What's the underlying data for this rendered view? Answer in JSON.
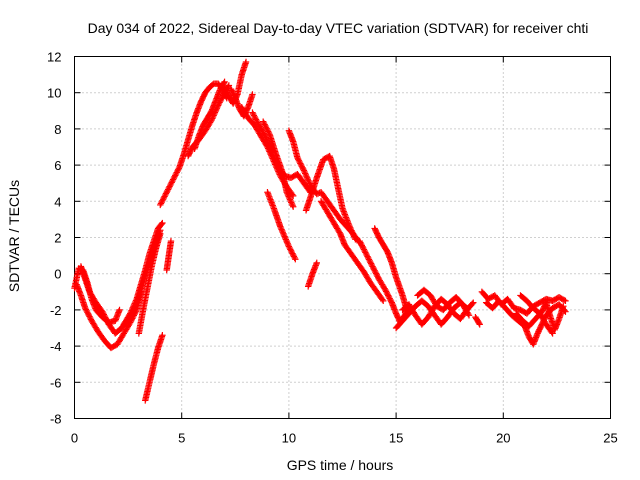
{
  "chart_data": {
    "type": "scatter",
    "title": "Day 034 of 2022, Sidereal Day-to-day VTEC variation (SDTVAR) for receiver chti",
    "xlabel": "GPS time / hours",
    "ylabel": "SDTVAR / TECUs",
    "xlim": [
      0,
      25
    ],
    "ylim": [
      -8,
      12
    ],
    "xticks": [
      0,
      5,
      10,
      15,
      20,
      25
    ],
    "yticks": [
      -8,
      -6,
      -4,
      -2,
      0,
      2,
      4,
      6,
      8,
      10,
      12
    ],
    "grid": true,
    "marker": "+",
    "color": "#ff0000",
    "series": [
      {
        "name": "SDTVAR",
        "segments": [
          [
            [
              0.0,
              -0.8
            ],
            [
              0.2,
              0.3
            ],
            [
              0.4,
              0.2
            ],
            [
              0.6,
              -0.5
            ],
            [
              0.8,
              -1.4
            ],
            [
              1.0,
              -2.0
            ],
            [
              1.3,
              -2.4
            ],
            [
              1.6,
              -2.7
            ],
            [
              1.9,
              -2.6
            ],
            [
              2.1,
              -2.0
            ]
          ],
          [
            [
              0.1,
              -0.6
            ],
            [
              0.3,
              -1.2
            ],
            [
              0.5,
              -1.9
            ],
            [
              0.8,
              -2.6
            ],
            [
              1.1,
              -3.2
            ],
            [
              1.4,
              -3.7
            ],
            [
              1.7,
              -4.1
            ],
            [
              2.0,
              -3.9
            ],
            [
              2.3,
              -3.3
            ],
            [
              2.6,
              -2.7
            ],
            [
              2.9,
              -2.0
            ],
            [
              3.1,
              -1.0
            ]
          ],
          [
            [
              0.3,
              0.4
            ],
            [
              0.5,
              -0.3
            ],
            [
              0.7,
              -1.0
            ],
            [
              1.0,
              -1.6
            ],
            [
              1.3,
              -2.1
            ],
            [
              1.6,
              -2.8
            ],
            [
              1.9,
              -3.3
            ],
            [
              2.2,
              -3.0
            ],
            [
              2.5,
              -2.5
            ],
            [
              2.8,
              -1.9
            ],
            [
              3.0,
              -1.3
            ],
            [
              3.2,
              -0.5
            ],
            [
              3.4,
              0.3
            ],
            [
              3.6,
              1.0
            ],
            [
              3.8,
              1.7
            ],
            [
              4.0,
              2.4
            ]
          ],
          [
            [
              2.3,
              -2.8
            ],
            [
              2.6,
              -2.2
            ],
            [
              2.9,
              -1.4
            ],
            [
              3.1,
              -0.6
            ],
            [
              3.3,
              0.2
            ],
            [
              3.5,
              1.1
            ],
            [
              3.7,
              1.8
            ],
            [
              3.9,
              2.5
            ],
            [
              4.1,
              2.8
            ]
          ],
          [
            [
              3.0,
              -3.3
            ],
            [
              3.2,
              -2.0
            ],
            [
              3.4,
              -0.8
            ],
            [
              3.6,
              0.4
            ],
            [
              3.8,
              1.4
            ],
            [
              4.0,
              2.2
            ]
          ],
          [
            [
              4.3,
              0.2
            ],
            [
              4.4,
              1.0
            ],
            [
              4.5,
              1.8
            ]
          ],
          [
            [
              3.3,
              -7.0
            ],
            [
              3.5,
              -6.0
            ],
            [
              3.7,
              -5.0
            ],
            [
              3.9,
              -4.1
            ],
            [
              4.1,
              -3.4
            ]
          ],
          [
            [
              4.0,
              3.8
            ],
            [
              4.3,
              4.5
            ],
            [
              4.6,
              5.2
            ],
            [
              4.9,
              5.9
            ],
            [
              5.1,
              6.6
            ],
            [
              5.3,
              7.4
            ],
            [
              5.5,
              8.2
            ],
            [
              5.7,
              8.9
            ],
            [
              5.9,
              9.5
            ],
            [
              6.1,
              10.0
            ],
            [
              6.3,
              10.3
            ],
            [
              6.5,
              10.5
            ],
            [
              6.7,
              10.5
            ],
            [
              6.9,
              10.2
            ],
            [
              7.1,
              9.7
            ]
          ],
          [
            [
              5.3,
              6.5
            ],
            [
              5.5,
              7.0
            ],
            [
              5.8,
              7.4
            ],
            [
              6.1,
              7.9
            ],
            [
              6.4,
              8.5
            ],
            [
              6.7,
              9.3
            ],
            [
              7.0,
              10.0
            ],
            [
              7.2,
              10.4
            ]
          ],
          [
            [
              5.6,
              6.9
            ],
            [
              5.8,
              7.6
            ],
            [
              6.0,
              8.2
            ],
            [
              6.2,
              8.6
            ],
            [
              6.4,
              9.0
            ],
            [
              6.6,
              9.6
            ],
            [
              6.8,
              10.2
            ],
            [
              7.0,
              10.6
            ]
          ],
          [
            [
              7.0,
              10.3
            ],
            [
              7.2,
              9.8
            ],
            [
              7.4,
              9.4
            ],
            [
              7.6,
              9.9
            ],
            [
              7.8,
              11.0
            ],
            [
              8.0,
              11.7
            ]
          ],
          [
            [
              7.3,
              10.2
            ],
            [
              7.5,
              9.7
            ],
            [
              7.7,
              9.1
            ],
            [
              7.9,
              8.7
            ],
            [
              8.1,
              9.2
            ],
            [
              8.3,
              9.9
            ]
          ],
          [
            [
              7.8,
              9.2
            ],
            [
              8.1,
              8.6
            ],
            [
              8.4,
              8.2
            ],
            [
              8.7,
              7.6
            ],
            [
              9.0,
              7.0
            ],
            [
              9.3,
              6.2
            ],
            [
              9.6,
              5.4
            ],
            [
              9.9,
              4.8
            ],
            [
              10.2,
              4.3
            ]
          ],
          [
            [
              8.3,
              8.9
            ],
            [
              8.6,
              8.2
            ],
            [
              8.9,
              7.6
            ],
            [
              9.2,
              6.7
            ],
            [
              9.5,
              5.9
            ],
            [
              9.8,
              5.4
            ],
            [
              10.1,
              5.3
            ],
            [
              10.4,
              5.5
            ],
            [
              10.7,
              5.0
            ],
            [
              11.0,
              4.5
            ]
          ],
          [
            [
              8.8,
              8.4
            ],
            [
              9.1,
              7.7
            ],
            [
              9.4,
              6.6
            ],
            [
              9.7,
              5.6
            ],
            [
              9.9,
              4.5
            ],
            [
              10.2,
              3.7
            ]
          ],
          [
            [
              9.0,
              4.5
            ],
            [
              9.3,
              3.6
            ],
            [
              9.6,
              2.6
            ],
            [
              10.0,
              1.5
            ],
            [
              10.3,
              0.8
            ]
          ],
          [
            [
              10.0,
              7.9
            ],
            [
              10.2,
              7.3
            ],
            [
              10.4,
              6.4
            ],
            [
              10.7,
              5.7
            ],
            [
              11.0,
              4.9
            ],
            [
              11.3,
              4.4
            ],
            [
              11.5,
              4.5
            ],
            [
              11.8,
              4.0
            ],
            [
              12.1,
              3.5
            ],
            [
              12.4,
              3.0
            ],
            [
              12.7,
              2.6
            ],
            [
              13.0,
              2.2
            ],
            [
              13.3,
              1.7
            ]
          ],
          [
            [
              10.8,
              3.5
            ],
            [
              11.0,
              4.2
            ],
            [
              11.3,
              5.3
            ],
            [
              11.6,
              6.3
            ],
            [
              11.9,
              6.5
            ],
            [
              12.1,
              5.8
            ],
            [
              12.3,
              4.7
            ],
            [
              12.5,
              3.6
            ],
            [
              12.8,
              2.7
            ],
            [
              13.1,
              1.9
            ]
          ],
          [
            [
              11.5,
              4.0
            ],
            [
              11.8,
              3.4
            ],
            [
              12.1,
              2.8
            ],
            [
              12.4,
              2.2
            ],
            [
              12.6,
              1.6
            ],
            [
              12.9,
              1.1
            ],
            [
              13.2,
              0.6
            ],
            [
              13.5,
              0.1
            ],
            [
              13.8,
              -0.5
            ],
            [
              14.1,
              -1.0
            ],
            [
              14.4,
              -1.5
            ]
          ],
          [
            [
              13.3,
              1.8
            ],
            [
              13.6,
              1.1
            ],
            [
              13.9,
              0.4
            ],
            [
              14.2,
              -0.3
            ],
            [
              14.5,
              -0.9
            ],
            [
              14.8,
              -1.6
            ],
            [
              15.0,
              -2.2
            ],
            [
              15.2,
              -2.7
            ],
            [
              15.4,
              -2.3
            ],
            [
              15.6,
              -1.9
            ]
          ],
          [
            [
              14.0,
              2.5
            ],
            [
              14.2,
              2.0
            ],
            [
              14.4,
              1.6
            ],
            [
              14.6,
              1.2
            ],
            [
              14.8,
              0.6
            ],
            [
              15.0,
              -0.2
            ],
            [
              15.3,
              -1.2
            ],
            [
              15.5,
              -2.0
            ]
          ],
          [
            [
              10.9,
              -0.7
            ],
            [
              11.1,
              0.0
            ],
            [
              11.3,
              0.6
            ]
          ],
          [
            [
              15.0,
              -3.0
            ],
            [
              15.3,
              -2.6
            ],
            [
              15.6,
              -2.2
            ],
            [
              15.9,
              -1.8
            ],
            [
              16.2,
              -1.5
            ],
            [
              16.5,
              -1.8
            ],
            [
              16.8,
              -2.3
            ],
            [
              17.1,
              -2.8
            ],
            [
              17.4,
              -2.4
            ],
            [
              17.7,
              -1.9
            ],
            [
              18.0,
              -1.6
            ],
            [
              18.3,
              -1.9
            ]
          ],
          [
            [
              15.3,
              -2.0
            ],
            [
              15.6,
              -1.7
            ],
            [
              15.9,
              -2.3
            ],
            [
              16.2,
              -2.8
            ],
            [
              16.5,
              -2.4
            ],
            [
              16.8,
              -1.8
            ],
            [
              17.1,
              -1.4
            ],
            [
              17.4,
              -1.7
            ],
            [
              17.7,
              -2.2
            ],
            [
              18.0,
              -2.5
            ],
            [
              18.3,
              -2.0
            ],
            [
              18.6,
              -1.6
            ]
          ],
          [
            [
              16.0,
              -1.2
            ],
            [
              16.3,
              -0.9
            ],
            [
              16.6,
              -1.2
            ],
            [
              16.9,
              -1.8
            ],
            [
              17.2,
              -2.0
            ],
            [
              17.5,
              -1.6
            ],
            [
              17.8,
              -1.3
            ],
            [
              18.1,
              -1.7
            ],
            [
              18.4,
              -2.3
            ]
          ],
          [
            [
              18.7,
              -2.4
            ],
            [
              18.9,
              -2.8
            ]
          ],
          [
            [
              19.0,
              -1.0
            ],
            [
              19.3,
              -1.4
            ],
            [
              19.6,
              -1.2
            ],
            [
              19.9,
              -1.7
            ],
            [
              20.2,
              -1.4
            ],
            [
              20.5,
              -1.9
            ],
            [
              20.8,
              -2.0
            ],
            [
              21.1,
              -2.2
            ],
            [
              21.4,
              -1.8
            ],
            [
              21.7,
              -1.6
            ],
            [
              22.0,
              -1.4
            ],
            [
              22.3,
              -1.5
            ],
            [
              22.6,
              -1.3
            ],
            [
              22.9,
              -1.5
            ]
          ],
          [
            [
              19.2,
              -1.6
            ],
            [
              19.5,
              -1.9
            ],
            [
              19.8,
              -1.5
            ],
            [
              20.1,
              -1.9
            ],
            [
              20.4,
              -2.3
            ],
            [
              20.7,
              -2.6
            ],
            [
              21.0,
              -2.9
            ],
            [
              21.2,
              -3.5
            ],
            [
              21.4,
              -3.9
            ],
            [
              21.6,
              -3.3
            ],
            [
              21.8,
              -2.8
            ],
            [
              22.0,
              -2.3
            ],
            [
              22.3,
              -1.9
            ],
            [
              22.6,
              -1.7
            ],
            [
              22.9,
              -2.1
            ]
          ],
          [
            [
              20.6,
              -2.2
            ],
            [
              20.9,
              -2.6
            ],
            [
              21.2,
              -2.9
            ],
            [
              21.5,
              -2.5
            ],
            [
              21.8,
              -2.1
            ],
            [
              22.0,
              -1.6
            ],
            [
              22.2,
              -2.4
            ],
            [
              22.4,
              -3.1
            ],
            [
              22.6,
              -2.5
            ],
            [
              22.8,
              -1.8
            ]
          ],
          [
            [
              20.8,
              -1.2
            ],
            [
              21.1,
              -1.5
            ],
            [
              21.4,
              -1.9
            ],
            [
              21.7,
              -2.2
            ],
            [
              22.0,
              -2.8
            ],
            [
              22.3,
              -3.3
            ]
          ]
        ]
      }
    ]
  }
}
